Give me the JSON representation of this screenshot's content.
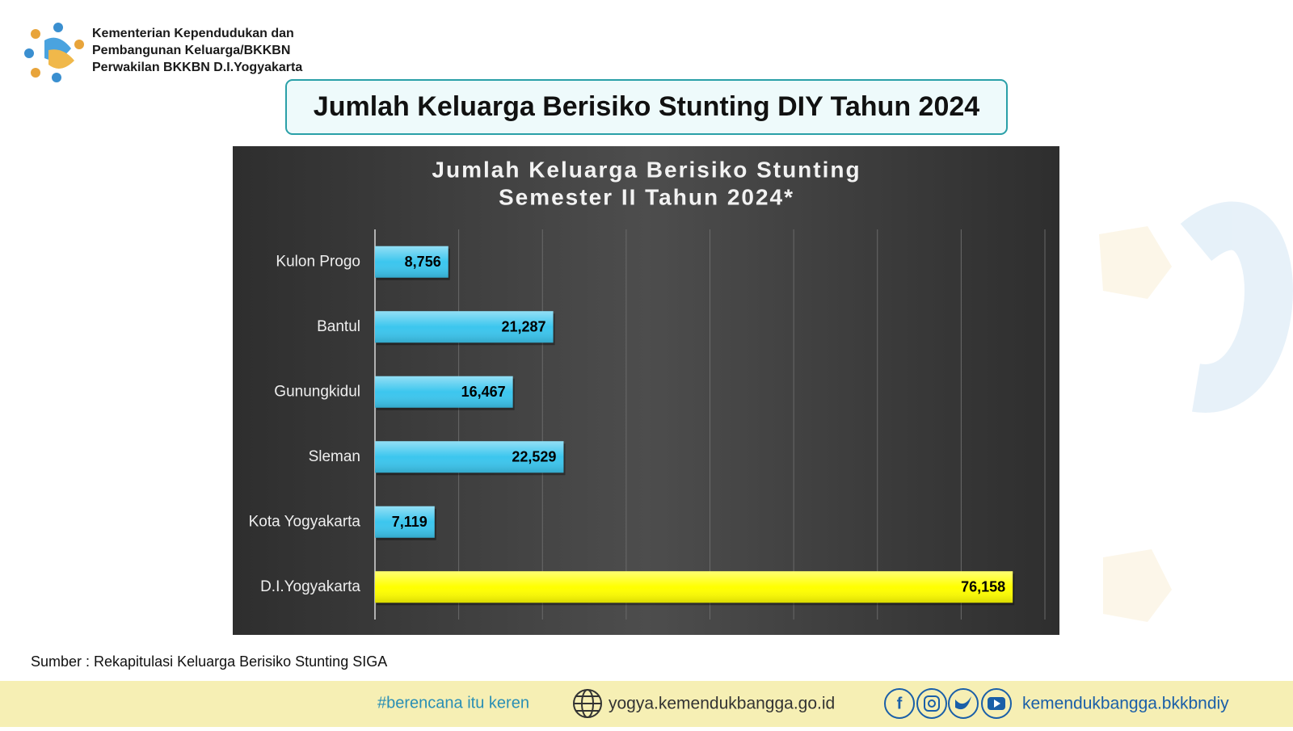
{
  "header": {
    "org_lines": [
      "Kementerian Kependudukan dan",
      "Pembangunan Keluarga/BKKBN",
      "Perwakilan BKKBN D.I.Yogyakarta"
    ]
  },
  "slide_title": "Jumlah Keluarga Berisiko Stunting DIY Tahun 2024",
  "chart_data": {
    "type": "bar",
    "orientation": "horizontal",
    "title": [
      "Jumlah Keluarga Berisiko Stunting",
      "Semester II Tahun 2024*"
    ],
    "categories": [
      "Kulon Progo",
      "Bantul",
      "Gunungkidul",
      "Sleman",
      "Kota Yogyakarta",
      "D.I.Yogyakarta"
    ],
    "values": [
      8756,
      21287,
      16467,
      22529,
      7119,
      76158
    ],
    "value_labels": [
      "8,756",
      "21,287",
      "16,467",
      "22,529",
      "7,119",
      "76,158"
    ],
    "colors": [
      "#3cc6ee",
      "#3cc6ee",
      "#3cc6ee",
      "#3cc6ee",
      "#3cc6ee",
      "#ffff00"
    ],
    "xlim": [
      0,
      80000
    ],
    "xticks": [
      0,
      10000,
      20000,
      30000,
      40000,
      50000,
      60000,
      70000,
      80000
    ],
    "grid": true
  },
  "source": "Sumber : Rekapitulasi Keluarga Berisiko Stunting SIGA",
  "footer": {
    "hashtag": "#berencana itu keren",
    "website": "yogya.kemendukbangga.go.id",
    "social_handle": "kemendukbangga.bkkbndiy"
  }
}
